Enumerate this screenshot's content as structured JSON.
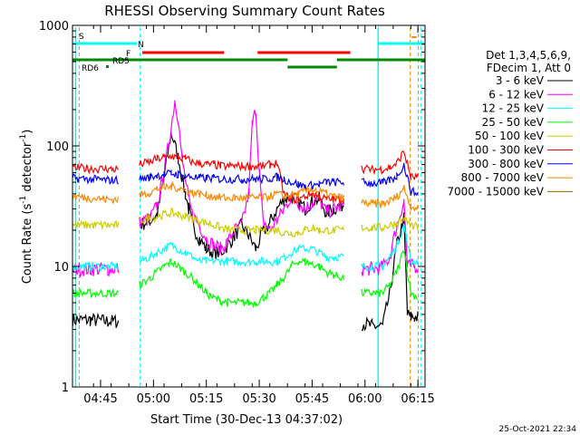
{
  "chart_data": {
    "type": "line",
    "title": "RHESSI Observing Summary Count Rates",
    "xlabel": "Start Time (30-Dec-13 04:37:02)",
    "ylabel_main": "Count Rate (s",
    "ylabel_sup1": "-1",
    "ylabel_mid": " detector",
    "ylabel_sup2": "-1",
    "ylabel_end": ")",
    "yscale": "log",
    "ylim": [
      1,
      1000
    ],
    "xlim_minutes": [
      0,
      100
    ],
    "x_tick_labels": [
      "04:45",
      "05:00",
      "05:15",
      "05:30",
      "05:45",
      "06:00",
      "06:15"
    ],
    "x_tick_minutes": [
      7.97,
      22.97,
      37.97,
      52.97,
      67.97,
      82.97,
      97.97
    ],
    "y_tick_labels": [
      "1",
      "10",
      "100",
      "1000"
    ],
    "y_tick_values": [
      1,
      10,
      100,
      1000
    ],
    "legend_header": [
      "Det 1,3,4,5,6,9,",
      "FDecim 1, Att 0"
    ],
    "legend_placement": "right",
    "series": [
      {
        "name": "3 - 6 keV",
        "color": "#000000",
        "x": [
          0,
          5,
          10,
          13,
          16,
          19,
          22,
          24,
          26,
          28,
          30,
          32,
          33,
          34,
          36,
          38,
          40,
          42,
          44,
          46,
          48,
          50,
          52,
          54,
          56,
          58,
          60,
          62,
          64,
          66,
          68,
          70,
          72,
          74,
          77,
          80,
          82,
          85,
          88,
          90,
          92,
          94,
          95,
          96,
          97,
          98
        ],
        "y": [
          3.6,
          3.6,
          3.5,
          3.5,
          null,
          22,
          24,
          27,
          55,
          130,
          80,
          40,
          30,
          22,
          17,
          14,
          13,
          13,
          15,
          18,
          22,
          18,
          14,
          19,
          23,
          30,
          36,
          38,
          35,
          30,
          35,
          36,
          28,
          30,
          33,
          null,
          3.4,
          3.2,
          3.2,
          6,
          15,
          25,
          4,
          3.8,
          3.8,
          3.8
        ]
      },
      {
        "name": "6 - 12 keV",
        "color": "#ff00ff",
        "x": [
          0,
          5,
          10,
          13,
          16,
          19,
          22,
          24,
          26,
          28,
          29,
          30,
          31,
          33,
          34,
          36,
          38,
          40,
          42,
          44,
          46,
          48,
          50,
          51,
          52,
          53,
          54,
          56,
          58,
          60,
          62,
          64,
          66,
          68,
          70,
          72,
          74,
          77,
          80,
          82,
          85,
          88,
          90,
          92,
          94,
          95,
          96,
          97,
          98
        ],
        "y": [
          9.5,
          9.5,
          9.5,
          9.5,
          null,
          23,
          25,
          32,
          60,
          140,
          240,
          170,
          80,
          35,
          27,
          22,
          17,
          15,
          14,
          16,
          20,
          22,
          40,
          150,
          200,
          60,
          24,
          20,
          24,
          30,
          38,
          34,
          30,
          34,
          36,
          28,
          30,
          32,
          null,
          9.5,
          9.5,
          9.8,
          12,
          22,
          35,
          10,
          10,
          10,
          10
        ]
      },
      {
        "name": "12 - 25 keV",
        "color": "#00ffff",
        "x": [
          0,
          5,
          10,
          13,
          16,
          19,
          22,
          24,
          26,
          28,
          30,
          32,
          34,
          36,
          38,
          40,
          42,
          44,
          46,
          48,
          50,
          52,
          54,
          56,
          58,
          60,
          62,
          64,
          66,
          68,
          70,
          72,
          74,
          77,
          80,
          82,
          85,
          88,
          90,
          92,
          94,
          96,
          98
        ],
        "y": [
          10,
          10,
          10,
          10,
          null,
          11,
          12,
          13,
          14,
          15,
          14,
          13,
          12,
          11,
          11,
          11,
          11,
          11,
          11,
          11,
          11,
          11,
          11,
          11,
          11,
          12,
          13,
          14,
          14,
          14,
          13,
          12,
          12,
          12,
          null,
          10,
          10,
          10,
          12,
          15,
          22,
          11,
          11
        ]
      },
      {
        "name": "25 - 50 keV",
        "color": "#00ff00",
        "x": [
          0,
          5,
          10,
          13,
          16,
          19,
          22,
          24,
          26,
          28,
          30,
          32,
          34,
          36,
          38,
          40,
          42,
          44,
          46,
          48,
          50,
          52,
          54,
          56,
          58,
          60,
          62,
          64,
          66,
          68,
          70,
          72,
          74,
          77,
          80,
          82,
          85,
          88,
          90,
          92,
          94,
          96,
          98
        ],
        "y": [
          6,
          6,
          6,
          6,
          null,
          7,
          8,
          9,
          10,
          11,
          10,
          9,
          8,
          7,
          6,
          5.5,
          5.2,
          5,
          5,
          5,
          5,
          5,
          5.5,
          6,
          7,
          8,
          10,
          11,
          11,
          10.5,
          10,
          9,
          8.5,
          8,
          null,
          6,
          6,
          6,
          7,
          9,
          14,
          6,
          5.5
        ]
      },
      {
        "name": "50 - 100 keV",
        "color": "#cccc00",
        "x": [
          0,
          5,
          10,
          13,
          16,
          19,
          22,
          24,
          26,
          28,
          30,
          32,
          34,
          36,
          38,
          40,
          42,
          44,
          46,
          48,
          50,
          52,
          54,
          56,
          58,
          60,
          62,
          64,
          66,
          68,
          70,
          72,
          74,
          77,
          80,
          82,
          85,
          88,
          90,
          92,
          94,
          96,
          98
        ],
        "y": [
          22,
          22,
          22,
          22,
          null,
          24,
          25,
          26,
          27,
          28,
          27,
          26,
          25,
          24,
          23,
          22,
          21,
          20,
          20,
          20,
          20,
          20,
          20,
          20,
          20,
          19,
          19,
          19,
          20,
          21,
          20,
          20,
          20,
          20,
          null,
          21,
          21,
          21,
          22,
          23,
          25,
          22,
          21
        ]
      },
      {
        "name": "100 - 300 keV",
        "color": "#ff0000",
        "x": [
          0,
          5,
          10,
          13,
          16,
          19,
          22,
          24,
          26,
          28,
          30,
          32,
          34,
          36,
          38,
          40,
          42,
          44,
          46,
          48,
          50,
          52,
          54,
          56,
          58,
          60,
          62,
          64,
          66,
          68,
          70,
          72,
          74,
          77,
          80,
          82,
          85,
          88,
          90,
          92,
          94,
          96,
          98
        ],
        "y": [
          66,
          65,
          64,
          64,
          null,
          70,
          74,
          78,
          80,
          82,
          80,
          78,
          74,
          72,
          70,
          70,
          68,
          68,
          68,
          68,
          68,
          68,
          68,
          70,
          72,
          40,
          36,
          36,
          38,
          40,
          38,
          36,
          36,
          36,
          null,
          65,
          64,
          64,
          66,
          72,
          90,
          55,
          55
        ]
      },
      {
        "name": "300 - 800 keV",
        "color": "#0000ff",
        "x": [
          0,
          5,
          10,
          13,
          16,
          19,
          22,
          24,
          26,
          28,
          30,
          32,
          34,
          36,
          38,
          40,
          42,
          44,
          46,
          48,
          50,
          52,
          54,
          56,
          58,
          60,
          62,
          64,
          66,
          68,
          70,
          72,
          74,
          77,
          80,
          82,
          85,
          88,
          90,
          92,
          94,
          96,
          98
        ],
        "y": [
          54,
          53,
          52,
          52,
          null,
          53,
          55,
          57,
          58,
          59,
          58,
          56,
          55,
          54,
          54,
          54,
          53,
          53,
          53,
          53,
          53,
          53,
          53,
          54,
          55,
          53,
          50,
          48,
          46,
          47,
          48,
          50,
          50,
          50,
          null,
          50,
          49,
          49,
          52,
          56,
          70,
          42,
          40
        ]
      },
      {
        "name": "800 - 7000 keV",
        "color": "#ff8800",
        "x": [
          0,
          5,
          10,
          13,
          16,
          19,
          22,
          24,
          26,
          28,
          30,
          32,
          34,
          36,
          38,
          40,
          42,
          44,
          46,
          48,
          50,
          52,
          54,
          56,
          58,
          60,
          62,
          64,
          66,
          68,
          70,
          72,
          74,
          77,
          80,
          82,
          85,
          88,
          90,
          92,
          94,
          96,
          98
        ],
        "y": [
          38,
          37,
          36,
          36,
          null,
          39,
          41,
          44,
          45,
          46,
          45,
          43,
          41,
          40,
          39,
          38,
          37,
          37,
          37,
          37,
          37,
          37,
          37,
          38,
          40,
          38,
          39,
          40,
          42,
          44,
          42,
          40,
          38,
          37,
          null,
          34,
          33,
          33,
          35,
          38,
          45,
          32,
          30
        ]
      },
      {
        "name": "7000 - 15000 keV",
        "color": "#996600",
        "x": [],
        "y": []
      }
    ],
    "flag_bars": [
      {
        "label": "S",
        "color": "#ff8800"
      },
      {
        "label": "N",
        "color": "#00ffff"
      },
      {
        "label": "F",
        "color": "#ff0000"
      },
      {
        "label": "RD5",
        "color": "#008800"
      },
      {
        "label": "RD6",
        "color": "#008800"
      }
    ],
    "vertical_markers_minutes": {
      "cyan": [
        0.9,
        19.2,
        86.7,
        98.8
      ],
      "orange": [
        1.9,
        95.8,
        98.1
      ]
    },
    "corner_timestamp": "25-Oct-2021 22:34"
  }
}
